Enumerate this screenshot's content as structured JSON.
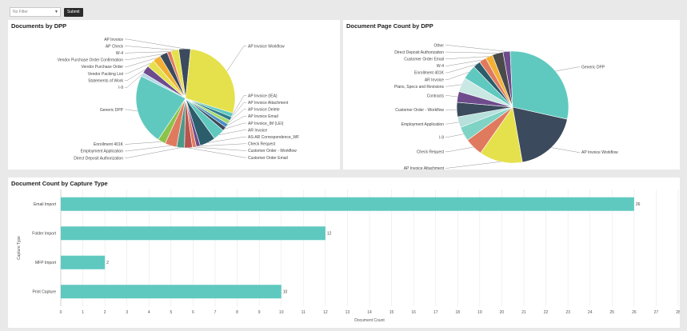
{
  "toolbar": {
    "filter_value": "No Filter",
    "submit_label": "Submit"
  },
  "colors": {
    "teal": "#5fc9bf",
    "navy": "#3b4a5c",
    "yellow": "#e5e14d",
    "orange": "#e07a5f",
    "purple": "#6d4b8c",
    "bar": "#5fc9bf"
  },
  "charts": {
    "docs_by_dpp": {
      "title": "Documents by DPP",
      "chart_data": {
        "type": "pie",
        "labels": [
          "AP Invoice",
          "AP Invoice Workflow",
          "AP Invoice (IEA)",
          "AP Invoice Attachment",
          "AP Invoice Delete",
          "AP Invoice Email",
          "AP Invoice_IM (LEI)",
          "AR Invoice",
          "AS-AR Correspondence_WF",
          "Check Request",
          "Customer Order - Workflow",
          "Customer Order Email",
          "Direct Deposit Authorization",
          "Employment Application",
          "Enrollment 401K",
          "Generic DPP",
          "I-9",
          "Statements of Work",
          "Vendor Packing List",
          "Vendor Purchase Order",
          "Vendor Purchase Order Confirmation",
          "W-4",
          "AP Check"
        ],
        "values": [
          3,
          22,
          1,
          1,
          1,
          1,
          1,
          3,
          4,
          1,
          1,
          2,
          2,
          3,
          2,
          18,
          1,
          2,
          2,
          2,
          2,
          1,
          2
        ],
        "colors": [
          "#3b4a5c",
          "#e5e14d",
          "#5fc9bf",
          "#2e7d8c",
          "#a4d96c",
          "#4a90c2",
          "#3b4a5c",
          "#5fc9bf",
          "#2b5d6b",
          "#6d4b8c",
          "#e07a5f",
          "#b85450",
          "#4a9a8a",
          "#e07a5f",
          "#8bc34a",
          "#5fc9bf",
          "#b7d7e8",
          "#6d4b8c",
          "#e5e14d",
          "#f2b134",
          "#3b4a5c",
          "#e07a5f",
          "#e5e14d"
        ]
      }
    },
    "page_count_by_dpp": {
      "title": "Document Page Count by DPP",
      "chart_data": {
        "type": "pie",
        "labels": [
          "Other",
          "Generic DPP",
          "AP Invoice Workflow",
          "AP Invoice Attachment",
          "Check Request",
          "I-9",
          "Employment Application",
          "Customer Order - Workflow",
          "Contracts",
          "Plans, Specs and Revisions",
          "AR Invoice",
          "Enrollment 401K",
          "W-4",
          "Customer Order Email",
          "Direct Deposit Authorization"
        ],
        "values": [
          2,
          28,
          18,
          12,
          5,
          4,
          3,
          4,
          3,
          4,
          4,
          2,
          2,
          2,
          3
        ],
        "colors": [
          "#6d4b8c",
          "#5fc9bf",
          "#3b4a5c",
          "#e5e14d",
          "#e07a5f",
          "#7fd3c4",
          "#b7e0dc",
          "#3b4a5c",
          "#6d4b8c",
          "#c9e8e4",
          "#5fc9bf",
          "#2b5d6b",
          "#e07a5f",
          "#f2b134",
          "#4a4a4a"
        ]
      }
    },
    "capture_type": {
      "title": "Document Count by Capture Type",
      "chart_data": {
        "type": "bar",
        "orientation": "horizontal",
        "categories": [
          "Email Import",
          "Folder Import",
          "MFP Import",
          "Print Capture"
        ],
        "values": [
          26,
          12,
          2,
          10
        ],
        "xlabel": "Document Count",
        "ylabel": "Capture Type",
        "xlim": [
          0,
          28
        ],
        "xticks": [
          "0",
          "1",
          "2",
          "3",
          "4",
          "5",
          "6",
          "7",
          "8",
          "9",
          "10",
          "11",
          "12",
          "13",
          "14",
          "15",
          "16",
          "17",
          "18",
          "19",
          "20",
          "21",
          "22",
          "23",
          "24",
          "25",
          "26",
          "27",
          "28"
        ],
        "value_labels": [
          "26",
          "12",
          "2",
          "10"
        ],
        "grid": true
      }
    }
  }
}
